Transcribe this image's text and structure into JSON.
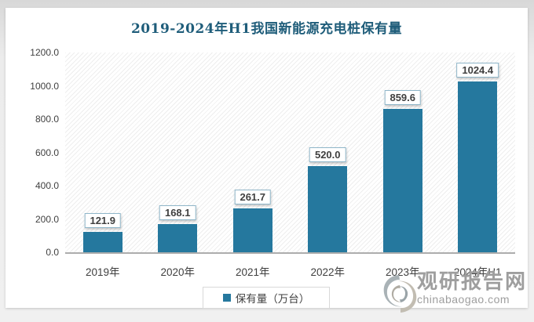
{
  "colors": {
    "bar": "#25789e",
    "title": "#1f5d7a",
    "text": "#3f3f3f",
    "label_border": "#8fb6c9",
    "axis_line": "#adadad",
    "watermark": "#9e9e9e"
  },
  "chart_data": {
    "type": "bar",
    "title": "2019-2024年H1我国新能源充电桩保有量",
    "categories": [
      "2019年",
      "2020年",
      "2021年",
      "2022年",
      "2023年",
      "2024年H1"
    ],
    "values": [
      121.9,
      168.1,
      261.7,
      520.0,
      859.6,
      1024.4
    ],
    "data_labels": [
      "121.9",
      "168.1",
      "261.7",
      "520.0",
      "859.6",
      "1024.4"
    ],
    "series_name": "保有量（万台）",
    "xlabel": "",
    "ylabel": "",
    "ylim": [
      0,
      1200
    ],
    "ytick_step": 200,
    "yticks": [
      "1200.0",
      "1000.0",
      "800.0",
      "600.0",
      "400.0",
      "200.0",
      "0.0"
    ],
    "grid": false,
    "legend_position": "bottom",
    "plot_background": "diagonal-hatch"
  },
  "legend": {
    "label": "保有量（万台）"
  },
  "watermark": {
    "brand": "观研报告网",
    "domain": "chinabaogao.com"
  }
}
